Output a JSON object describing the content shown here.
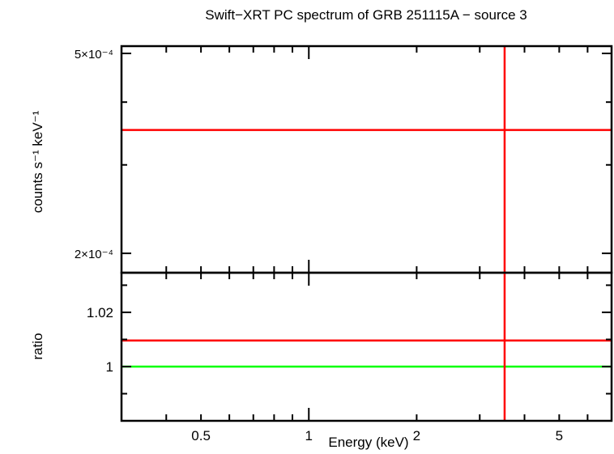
{
  "chart_data": [
    {
      "type": "line",
      "title": "Swift−XRT PC spectrum of GRB 251115A − source 3",
      "xlabel": "Energy (keV)",
      "ylabel": "counts s⁻¹ keV⁻¹",
      "xscale": "log",
      "yscale": "log",
      "xlim": [
        0.3,
        7
      ],
      "ylim": [
        0.000183,
        0.000517
      ],
      "yticks": [
        {
          "value": 0.0005,
          "label": "5×10⁻⁴"
        },
        {
          "value": 0.0002,
          "label": "2×10⁻⁴"
        }
      ],
      "series": [
        {
          "kind": "horizontal",
          "y": 0.000352,
          "color": "#ff0000"
        },
        {
          "kind": "vertical",
          "x": 3.52,
          "color": "#ff0000"
        }
      ]
    },
    {
      "type": "line",
      "xlabel": "Energy (keV)",
      "ylabel": "ratio",
      "xscale": "log",
      "xlim": [
        0.3,
        7
      ],
      "ylim": [
        0.98,
        1.0346
      ],
      "xticks": [
        {
          "value": 0.5,
          "label": "0.5"
        },
        {
          "value": 1,
          "label": "1"
        },
        {
          "value": 2,
          "label": "2"
        },
        {
          "value": 5,
          "label": "5"
        }
      ],
      "yticks": [
        {
          "value": 1.02,
          "label": "1.02"
        },
        {
          "value": 1,
          "label": "1"
        }
      ],
      "series": [
        {
          "kind": "horizontal",
          "y": 1.0096,
          "color": "#ff0000"
        },
        {
          "kind": "horizontal",
          "y": 1.0,
          "color": "#00ff00"
        },
        {
          "kind": "vertical",
          "x": 3.52,
          "color": "#ff0000"
        }
      ]
    }
  ]
}
